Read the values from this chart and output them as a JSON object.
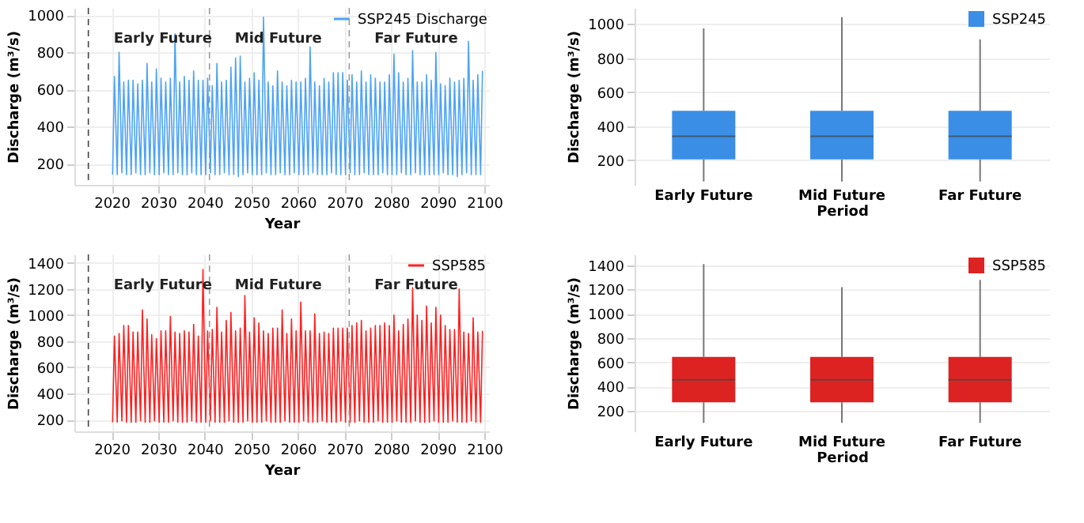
{
  "chart_data": [
    {
      "type": "line",
      "xlabel": "Year",
      "ylabel": "Discharge (m³/s)",
      "xlim": [
        2012,
        2101
      ],
      "xticks": [
        2020,
        2030,
        2040,
        2050,
        2060,
        2070,
        2080,
        2090,
        2100
      ],
      "ylim": [
        85,
        1040
      ],
      "yticks": [
        200,
        400,
        600,
        800,
        1000
      ],
      "grid": true,
      "legend": "top right",
      "x": [
        2020.2,
        2020.6,
        2021.2,
        2021.6,
        2022.2,
        2022.6,
        2023.2,
        2023.6,
        2024.2,
        2024.6,
        2025.2,
        2025.6,
        2026.2,
        2026.6,
        2027.2,
        2027.6,
        2028.2,
        2028.6,
        2029.2,
        2029.6,
        2030.2,
        2030.6,
        2031.2,
        2031.6,
        2032.2,
        2032.6,
        2033.2,
        2033.6,
        2034.2,
        2034.6,
        2035.2,
        2035.6,
        2036.2,
        2036.6,
        2037.2,
        2037.6,
        2038.2,
        2038.6,
        2039.2,
        2039.6,
        2040.2,
        2040.6,
        2041.2,
        2041.6,
        2042.2,
        2042.6,
        2043.2,
        2043.6,
        2044.2,
        2044.6,
        2045.2,
        2045.6,
        2046.2,
        2046.6,
        2047.2,
        2047.6,
        2048.2,
        2048.6,
        2049.2,
        2049.6,
        2050.2,
        2050.6,
        2051.2,
        2051.6,
        2052.2,
        2052.6,
        2053.2,
        2053.6,
        2054.2,
        2054.6,
        2055.2,
        2055.6,
        2056.2,
        2056.6,
        2057.2,
        2057.6,
        2058.2,
        2058.6,
        2059.2,
        2059.6,
        2060.2,
        2060.6,
        2061.2,
        2061.6,
        2062.2,
        2062.6,
        2063.2,
        2063.6,
        2064.2,
        2064.6,
        2065.2,
        2065.6,
        2066.2,
        2066.6,
        2067.2,
        2067.6,
        2068.2,
        2068.6,
        2069.2,
        2069.6,
        2070.2,
        2070.6,
        2071.2,
        2071.6,
        2072.2,
        2072.6,
        2073.2,
        2073.6,
        2074.2,
        2074.6,
        2075.2,
        2075.6,
        2076.2,
        2076.6,
        2077.2,
        2077.6,
        2078.2,
        2078.6,
        2079.2,
        2079.6,
        2080.2,
        2080.6,
        2081.2,
        2081.6,
        2082.2,
        2082.6,
        2083.2,
        2083.6,
        2084.2,
        2084.6,
        2085.2,
        2085.6,
        2086.2,
        2086.6,
        2087.2,
        2087.6,
        2088.2,
        2088.6,
        2089.2,
        2089.6,
        2090.2,
        2090.6,
        2091.2,
        2091.6,
        2092.2,
        2092.6,
        2093.2,
        2093.6,
        2094.2,
        2094.6,
        2095.2,
        2095.6,
        2096.2,
        2096.6,
        2097.2,
        2097.6,
        2098.2,
        2098.6,
        2099.2,
        2099.6
      ],
      "series": [
        {
          "name": "SSP245 Discharge",
          "color": "#4da3f5",
          "values": [
            140,
            670,
            140,
            800,
            150,
            640,
            140,
            650,
            140,
            650,
            150,
            630,
            140,
            650,
            140,
            740,
            150,
            640,
            140,
            710,
            140,
            660,
            150,
            640,
            140,
            660,
            140,
            900,
            150,
            640,
            140,
            670,
            140,
            650,
            150,
            700,
            140,
            650,
            140,
            650,
            140,
            660,
            150,
            620,
            140,
            740,
            140,
            640,
            150,
            650,
            140,
            720,
            140,
            770,
            130,
            780,
            140,
            640,
            150,
            660,
            140,
            690,
            140,
            650,
            140,
            990,
            150,
            640,
            140,
            620,
            140,
            700,
            150,
            640,
            140,
            620,
            140,
            650,
            150,
            640,
            140,
            640,
            140,
            660,
            140,
            830,
            150,
            640,
            140,
            620,
            140,
            660,
            140,
            640,
            150,
            690,
            140,
            690,
            140,
            690,
            140,
            650,
            150,
            680,
            140,
            640,
            140,
            700,
            150,
            640,
            140,
            680,
            140,
            660,
            140,
            640,
            150,
            640,
            140,
            680,
            140,
            790,
            140,
            690,
            150,
            640,
            140,
            660,
            140,
            810,
            150,
            640,
            140,
            640,
            140,
            680,
            140,
            650,
            140,
            800,
            140,
            630,
            150,
            620,
            140,
            660,
            140,
            640,
            130,
            650,
            140,
            660,
            150,
            860,
            140,
            650,
            140,
            680,
            140,
            700
          ]
        }
      ],
      "ref_lines": [
        {
          "axis": "x",
          "value": 2015,
          "label": "Early Future",
          "color": "#444444",
          "line_style": "dashed"
        },
        {
          "axis": "x",
          "value": 2041,
          "label": "Mid Future",
          "color": "#999999",
          "line_style": "dashed"
        },
        {
          "axis": "x",
          "value": 2071,
          "label": "Far Future",
          "color": "#999999",
          "line_style": "dashed"
        }
      ]
    },
    {
      "type": "box",
      "xlabel": "Period",
      "ylabel": "Discharge (m³/s)",
      "categories": [
        "Early Future",
        "Mid Future",
        "Far Future"
      ],
      "ylim": [
        55,
        1095
      ],
      "yticks": [
        200,
        400,
        600,
        800,
        1000
      ],
      "grid": "y",
      "legend": "top right",
      "series": [
        {
          "name": "SSP245",
          "color": "#3a8ee6",
          "boxes": [
            {
              "low": 75,
              "q1": 205,
              "median": 340,
              "q3": 490,
              "high": 975
            },
            {
              "low": 75,
              "q1": 205,
              "median": 340,
              "q3": 490,
              "high": 1040
            },
            {
              "low": 75,
              "q1": 205,
              "median": 340,
              "q3": 490,
              "high": 910
            }
          ]
        }
      ]
    },
    {
      "type": "line",
      "xlabel": "Year",
      "ylabel": "Discharge (m³/s)",
      "xlim": [
        2012,
        2101
      ],
      "xticks": [
        2020,
        2030,
        2040,
        2050,
        2060,
        2070,
        2080,
        2090,
        2100
      ],
      "ylim": [
        110,
        1465
      ],
      "yticks": [
        200,
        400,
        600,
        800,
        1000,
        1200,
        1400
      ],
      "grid": true,
      "legend": "top right",
      "x": [
        2020.2,
        2020.6,
        2021.2,
        2021.6,
        2022.2,
        2022.6,
        2023.2,
        2023.6,
        2024.2,
        2024.6,
        2025.2,
        2025.6,
        2026.2,
        2026.6,
        2027.2,
        2027.6,
        2028.2,
        2028.6,
        2029.2,
        2029.6,
        2030.2,
        2030.6,
        2031.2,
        2031.6,
        2032.2,
        2032.6,
        2033.2,
        2033.6,
        2034.2,
        2034.6,
        2035.2,
        2035.6,
        2036.2,
        2036.6,
        2037.2,
        2037.6,
        2038.2,
        2038.6,
        2039.2,
        2039.6,
        2040.2,
        2040.6,
        2041.2,
        2041.6,
        2042.2,
        2042.6,
        2043.2,
        2043.6,
        2044.2,
        2044.6,
        2045.2,
        2045.6,
        2046.2,
        2046.6,
        2047.2,
        2047.6,
        2048.2,
        2048.6,
        2049.2,
        2049.6,
        2050.2,
        2050.6,
        2051.2,
        2051.6,
        2052.2,
        2052.6,
        2053.2,
        2053.6,
        2054.2,
        2054.6,
        2055.2,
        2055.6,
        2056.2,
        2056.6,
        2057.2,
        2057.6,
        2058.2,
        2058.6,
        2059.2,
        2059.6,
        2060.2,
        2060.6,
        2061.2,
        2061.6,
        2062.2,
        2062.6,
        2063.2,
        2063.6,
        2064.2,
        2064.6,
        2065.2,
        2065.6,
        2066.2,
        2066.6,
        2067.2,
        2067.6,
        2068.2,
        2068.6,
        2069.2,
        2069.6,
        2070.2,
        2070.6,
        2071.2,
        2071.6,
        2072.2,
        2072.6,
        2073.2,
        2073.6,
        2074.2,
        2074.6,
        2075.2,
        2075.6,
        2076.2,
        2076.6,
        2077.2,
        2077.6,
        2078.2,
        2078.6,
        2079.2,
        2079.6,
        2080.2,
        2080.6,
        2081.2,
        2081.6,
        2082.2,
        2082.6,
        2083.2,
        2083.6,
        2084.2,
        2084.6,
        2085.2,
        2085.6,
        2086.2,
        2086.6,
        2087.2,
        2087.6,
        2088.2,
        2088.6,
        2089.2,
        2089.6,
        2090.2,
        2090.6,
        2091.2,
        2091.6,
        2092.2,
        2092.6,
        2093.2,
        2093.6,
        2094.2,
        2094.6,
        2095.2,
        2095.6,
        2096.2,
        2096.6,
        2097.2,
        2097.6,
        2098.2,
        2098.6,
        2099.2,
        2099.6
      ],
      "series": [
        {
          "name": "SSP585",
          "color": "#ff2020",
          "values": [
            180,
            840,
            180,
            860,
            190,
            920,
            180,
            920,
            180,
            870,
            180,
            870,
            190,
            1040,
            180,
            970,
            180,
            850,
            190,
            820,
            180,
            880,
            180,
            880,
            180,
            990,
            190,
            870,
            180,
            860,
            180,
            880,
            180,
            870,
            190,
            930,
            180,
            840,
            180,
            1350,
            180,
            880,
            190,
            890,
            180,
            1060,
            180,
            870,
            180,
            960,
            190,
            1020,
            180,
            880,
            180,
            900,
            180,
            1150,
            190,
            870,
            180,
            980,
            180,
            940,
            180,
            880,
            190,
            860,
            180,
            900,
            180,
            900,
            180,
            1040,
            190,
            860,
            180,
            970,
            180,
            880,
            180,
            1100,
            190,
            880,
            180,
            880,
            180,
            1010,
            180,
            860,
            190,
            870,
            180,
            860,
            180,
            900,
            180,
            900,
            190,
            900,
            180,
            900,
            180,
            920,
            180,
            940,
            190,
            960,
            180,
            880,
            180,
            900,
            180,
            920,
            190,
            920,
            180,
            940,
            180,
            920,
            180,
            1000,
            190,
            880,
            180,
            930,
            180,
            970,
            180,
            1210,
            190,
            1000,
            180,
            960,
            180,
            1070,
            180,
            940,
            190,
            1060,
            180,
            1000,
            180,
            920,
            180,
            890,
            190,
            890,
            180,
            1200,
            180,
            870,
            180,
            860,
            190,
            980,
            180,
            870,
            180,
            880
          ]
        }
      ],
      "ref_lines": [
        {
          "axis": "x",
          "value": 2015,
          "label": "Early Future",
          "color": "#444444",
          "line_style": "dashed"
        },
        {
          "axis": "x",
          "value": 2041,
          "label": "Mid Future",
          "color": "#999999",
          "line_style": "dashed"
        },
        {
          "axis": "x",
          "value": 2071,
          "label": "Far Future",
          "color": "#999999",
          "line_style": "dashed"
        }
      ]
    },
    {
      "type": "box",
      "xlabel": "Period",
      "ylabel": "Discharge (m³/s)",
      "categories": [
        "Early Future",
        "Mid Future",
        "Far Future"
      ],
      "ylim": [
        30,
        1490
      ],
      "yticks": [
        200,
        400,
        600,
        800,
        1000,
        1200,
        1400
      ],
      "grid": "y",
      "legend": "top right",
      "series": [
        {
          "name": "SSP585",
          "color": "#dd2222",
          "boxes": [
            {
              "low": 100,
              "q1": 270,
              "median": 455,
              "q3": 645,
              "high": 1410
            },
            {
              "low": 100,
              "q1": 270,
              "median": 455,
              "q3": 645,
              "high": 1220
            },
            {
              "low": 100,
              "q1": 270,
              "median": 455,
              "q3": 645,
              "high": 1280
            }
          ]
        }
      ]
    }
  ]
}
